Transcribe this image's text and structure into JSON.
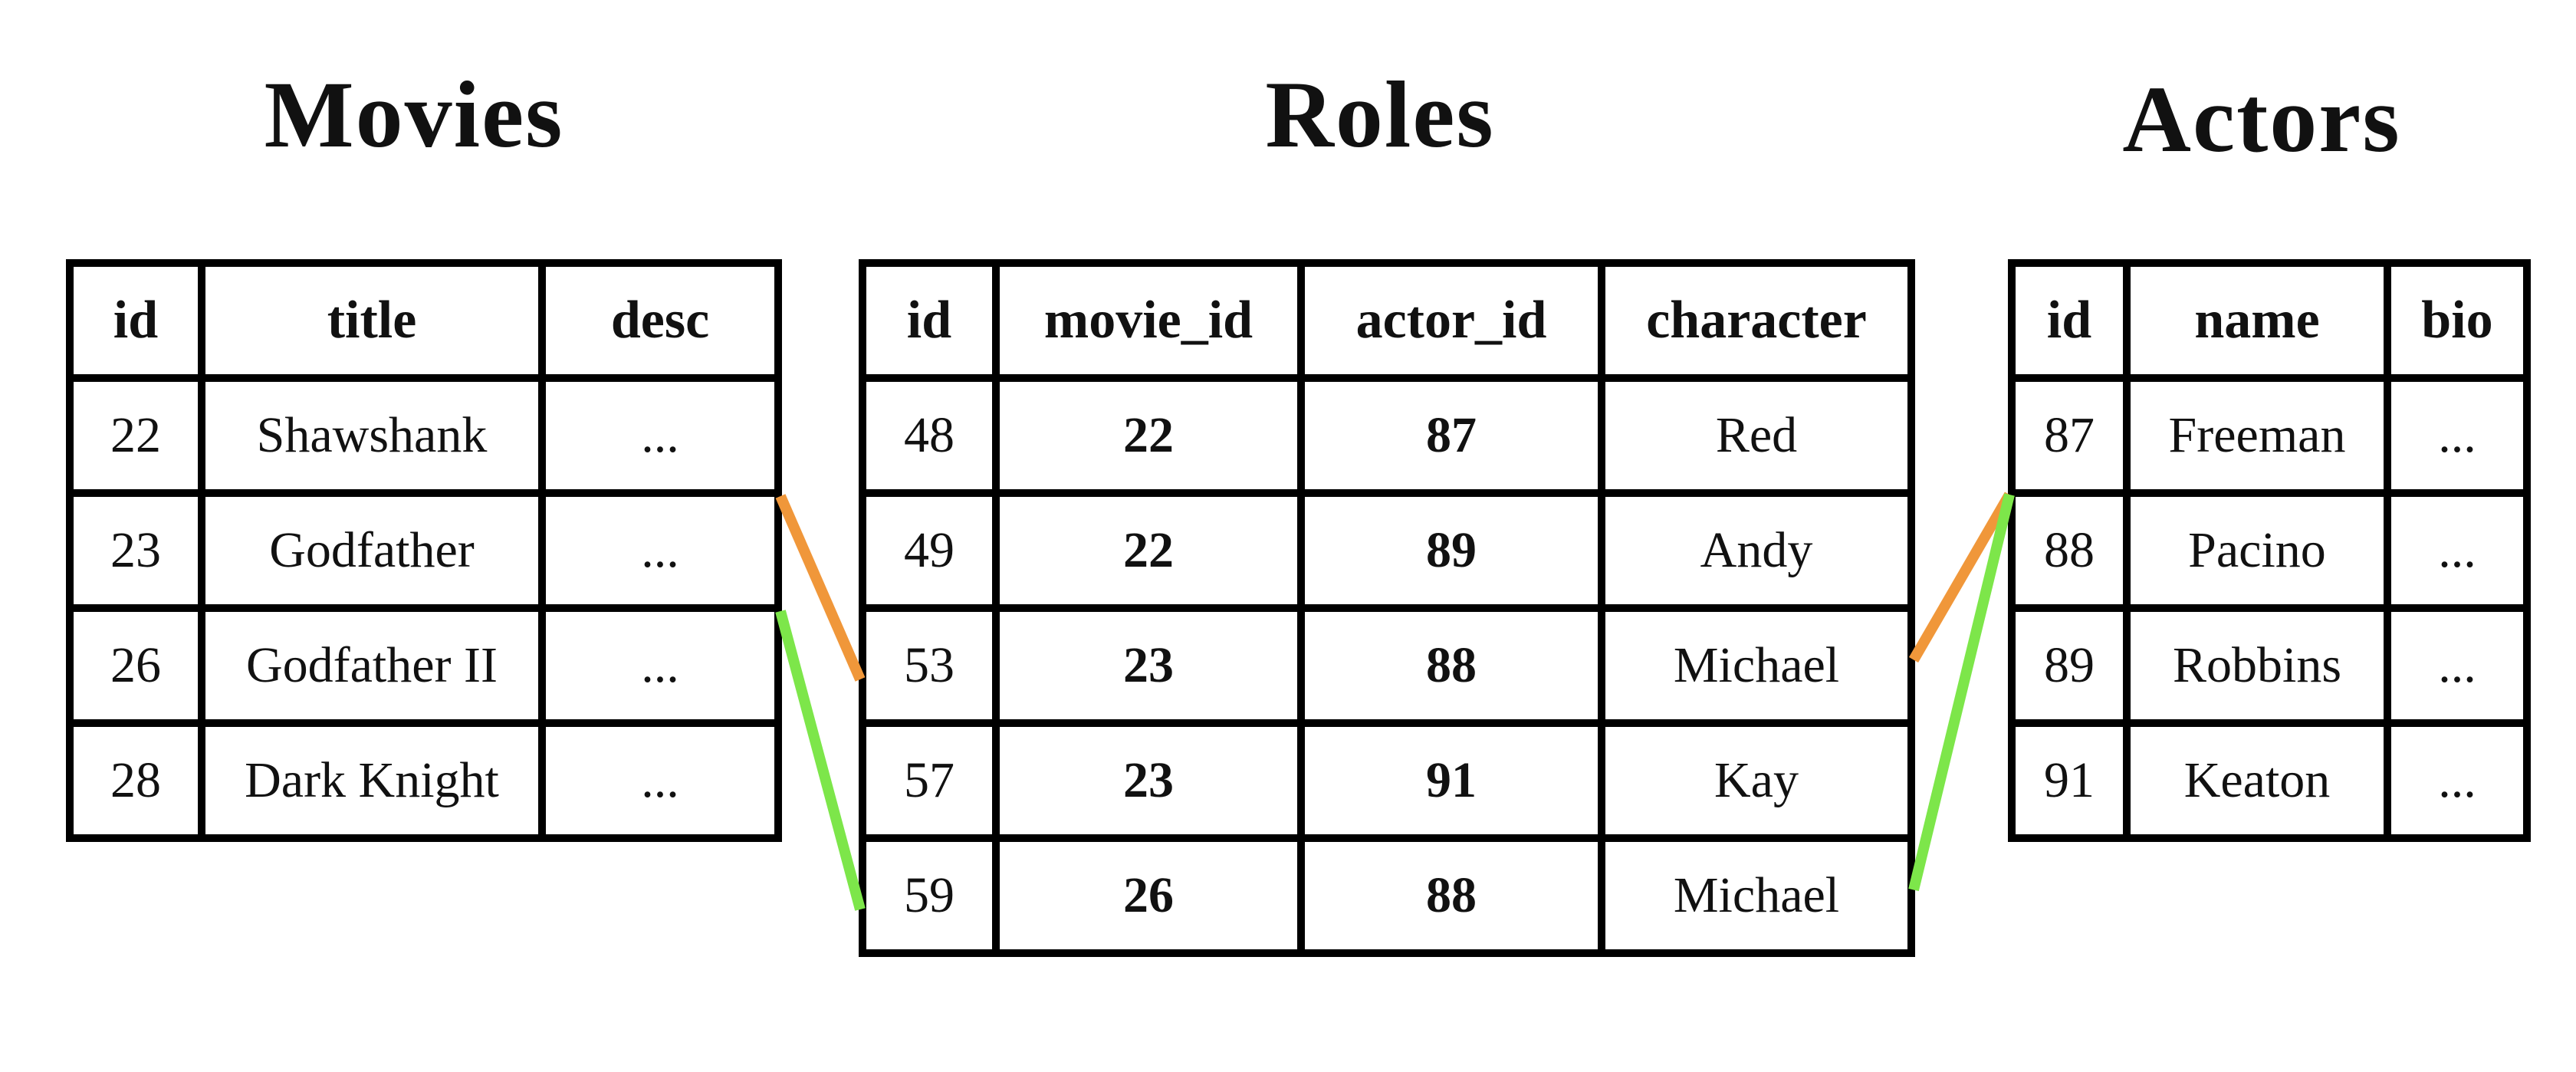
{
  "tables": {
    "movies": {
      "title": "Movies",
      "columns": [
        "id",
        "title",
        "desc"
      ],
      "rows": [
        [
          "22",
          "Shawshank",
          "..."
        ],
        [
          "23",
          "Godfather",
          "..."
        ],
        [
          "26",
          "Godfather II",
          "..."
        ],
        [
          "28",
          "Dark Knight",
          "..."
        ]
      ]
    },
    "roles": {
      "title": "Roles",
      "columns": [
        "id",
        "movie_id",
        "actor_id",
        "character"
      ],
      "rows": [
        [
          "48",
          "22",
          "87",
          "Red"
        ],
        [
          "49",
          "22",
          "89",
          "Andy"
        ],
        [
          "53",
          "23",
          "88",
          "Michael"
        ],
        [
          "57",
          "23",
          "91",
          "Kay"
        ],
        [
          "59",
          "26",
          "88",
          "Michael"
        ]
      ]
    },
    "actors": {
      "title": "Actors",
      "columns": [
        "id",
        "name",
        "bio"
      ],
      "rows": [
        [
          "87",
          "Freeman",
          "..."
        ],
        [
          "88",
          "Pacino",
          "..."
        ],
        [
          "89",
          "Robbins",
          "..."
        ],
        [
          "91",
          "Keaton",
          "..."
        ]
      ]
    }
  },
  "links": [
    {
      "from_table": "movies",
      "from_row": 1,
      "to_table": "roles",
      "to_row": 2,
      "color": "#f0973a"
    },
    {
      "from_table": "movies",
      "from_row": 2,
      "to_table": "roles",
      "to_row": 4,
      "color": "#7de64a"
    },
    {
      "from_table": "roles",
      "from_row": 2,
      "to_table": "actors",
      "to_row": 1,
      "color": "#f0973a"
    },
    {
      "from_table": "roles",
      "from_row": 4,
      "to_table": "actors",
      "to_row": 1,
      "color": "#7de64a"
    }
  ]
}
